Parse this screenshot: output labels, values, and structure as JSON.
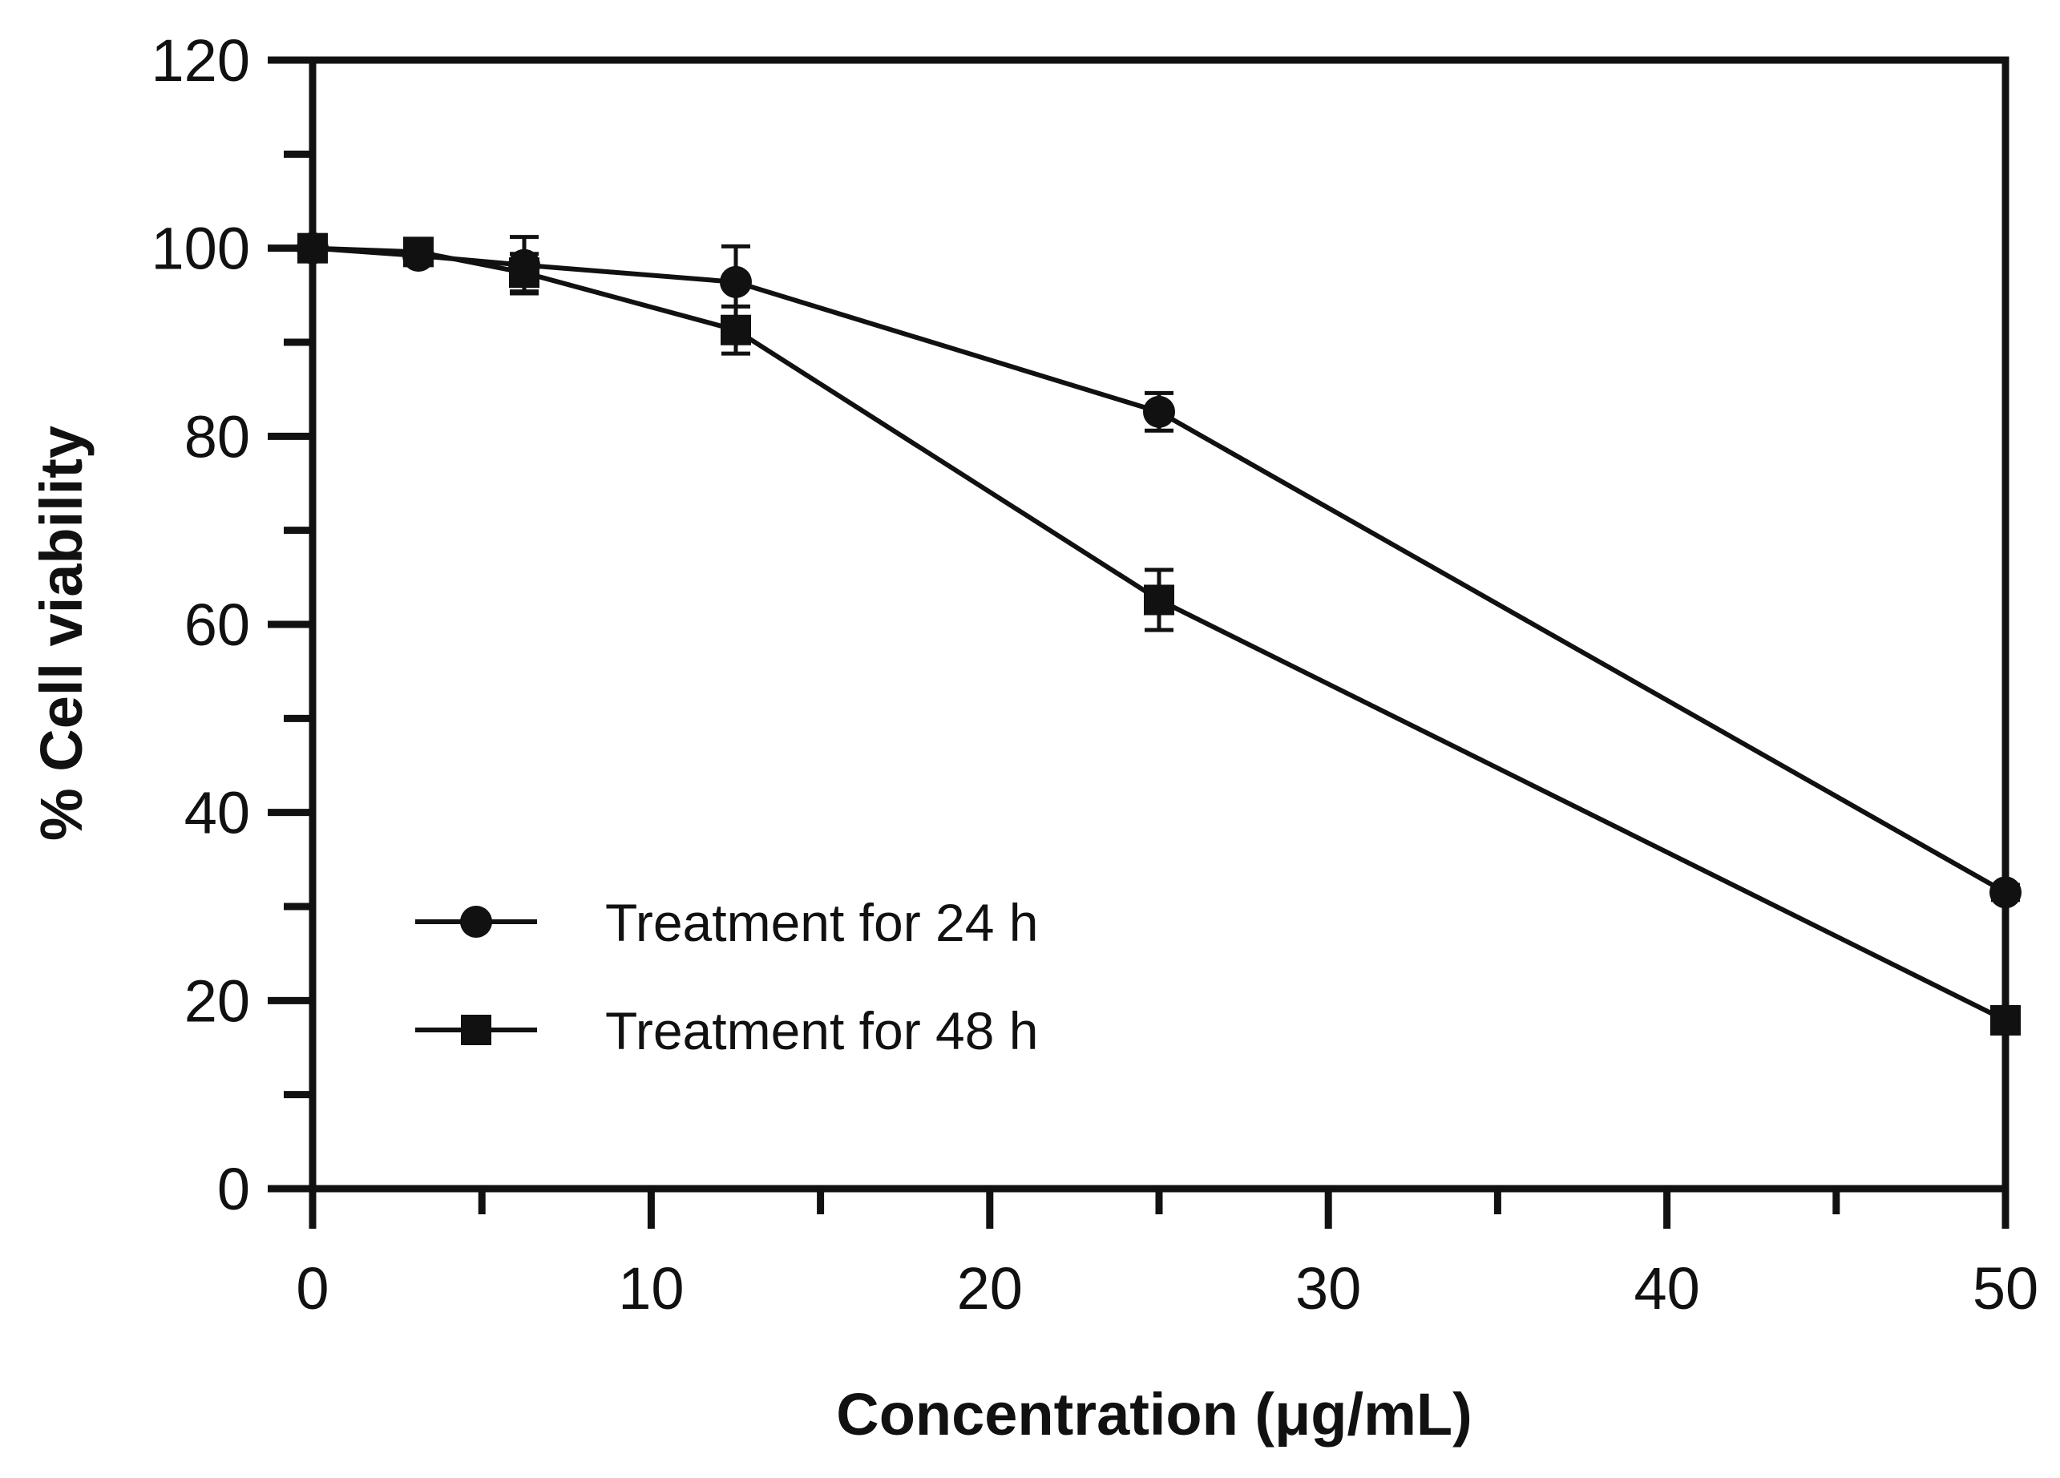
{
  "chart_data": {
    "type": "line",
    "title": "",
    "xlabel": "Concentration (μg/mL)",
    "ylabel": "% Cell viability",
    "xlim": [
      0,
      50
    ],
    "ylim": [
      0,
      120
    ],
    "xticks": [
      0,
      10,
      20,
      30,
      40,
      50
    ],
    "yticks": [
      0,
      20,
      40,
      60,
      80,
      100,
      120
    ],
    "x_minor_step": 5,
    "y_minor_step": 10,
    "grid": false,
    "legend_position": "bottom-left",
    "series": [
      {
        "name": "Treatment for 24 h",
        "marker": "circle",
        "x": [
          0,
          3.125,
          6.25,
          12.5,
          25,
          50
        ],
        "y": [
          100,
          99.2,
          98.2,
          96.4,
          82.6,
          31.5
        ],
        "err": [
          0.5,
          0.8,
          3.0,
          3.8,
          2.0,
          0.8
        ]
      },
      {
        "name": "Treatment for 48 h",
        "marker": "square",
        "x": [
          0,
          3.125,
          6.25,
          12.5,
          25,
          50
        ],
        "y": [
          100,
          99.6,
          97.4,
          91.3,
          62.6,
          17.9
        ],
        "err": [
          0.5,
          0.6,
          2.0,
          2.5,
          3.2,
          0.8
        ]
      }
    ]
  }
}
